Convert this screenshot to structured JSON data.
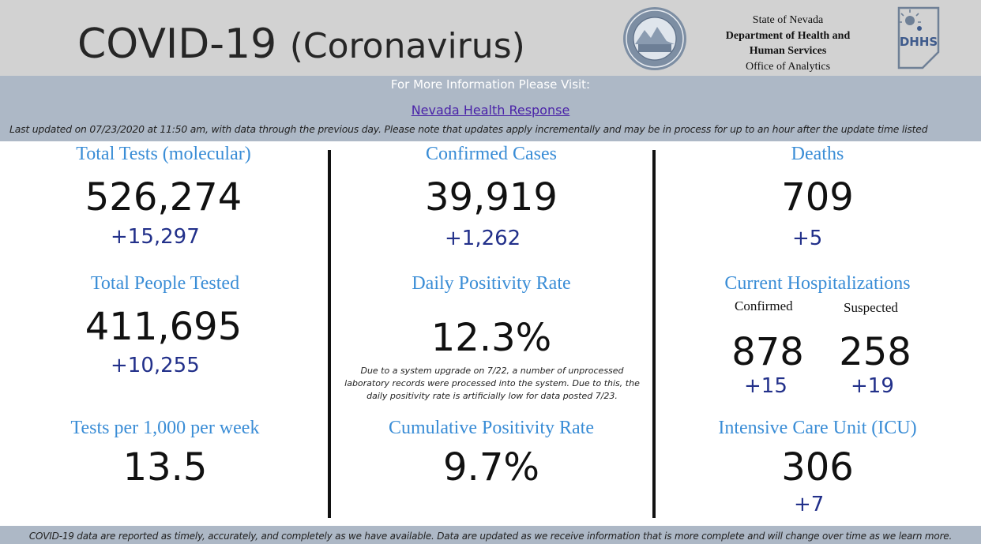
{
  "header": {
    "title_main": "COVID-19",
    "title_sub": "(Coronavirus)",
    "agency": {
      "line1": "State of Nevada",
      "line2": "Department of Health and",
      "line3": "Human Services",
      "line4": "Office of Analytics"
    },
    "seal_icon": "nevada-state-seal-icon",
    "logo_icon": "dhhs-logo-icon"
  },
  "info": {
    "visit_text": "For More Information Please Visit:",
    "link_text": "Nevada Health Response",
    "updated_text": "Last updated on 07/23/2020 at 11:50 am, with data through the previous day.  Please note that updates apply incrementally and may be in process for up to an hour after the update time listed"
  },
  "metrics": {
    "total_tests": {
      "label": "Total Tests (molecular)",
      "value": "526,274",
      "delta": "+15,297"
    },
    "total_people": {
      "label": "Total People Tested",
      "value": "411,695",
      "delta": "+10,255"
    },
    "tests_per_1000": {
      "label": "Tests per 1,000 per week",
      "value": "13.5"
    },
    "confirmed_cases": {
      "label": "Confirmed Cases",
      "value": "39,919",
      "delta": "+1,262"
    },
    "daily_positivity": {
      "label": "Daily Positivity Rate",
      "value": "12.3%",
      "note": "Due to a system upgrade on 7/22, a number of unprocessed laboratory records were processed into the system.  Due to this, the daily positivity rate is artificially low for data posted 7/23."
    },
    "cumulative_positivity": {
      "label": "Cumulative Positivity Rate",
      "value": "9.7%"
    },
    "deaths": {
      "label": "Deaths",
      "value": "709",
      "delta": "+5"
    },
    "hospitalizations": {
      "label": "Current Hospitalizations",
      "confirmed_label": "Confirmed",
      "confirmed_value": "878",
      "confirmed_delta": "+15",
      "suspected_label": "Suspected",
      "suspected_value": "258",
      "suspected_delta": "+19"
    },
    "icu": {
      "label": "Intensive Care Unit (ICU)",
      "value": "306",
      "delta": "+7"
    }
  },
  "footer": {
    "text": "COVID-19 data are reported as timely, accurately, and completely as we have available.  Data are updated as we receive information that is more complete and will change over time as we learn more."
  },
  "colors": {
    "header_bg": "#d2d2d2",
    "info_bar_bg": "#adb8c6",
    "label_blue": "#3a8dd6",
    "delta_navy": "#22308a",
    "link_purple": "#4a23a8"
  }
}
